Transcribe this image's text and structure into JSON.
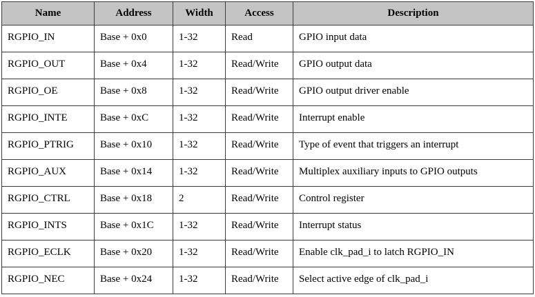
{
  "table": {
    "headers": [
      "Name",
      "Address",
      "Width",
      "Access",
      "Description"
    ],
    "rows": [
      [
        "RGPIO_IN",
        "Base + 0x0",
        "1-32",
        "Read",
        "GPIO input data"
      ],
      [
        "RGPIO_OUT",
        "Base + 0x4",
        "1-32",
        "Read/Write",
        "GPIO output data"
      ],
      [
        "RGPIO_OE",
        "Base + 0x8",
        "1-32",
        "Read/Write",
        "GPIO output driver enable"
      ],
      [
        "RGPIO_INTE",
        "Base + 0xC",
        "1-32",
        "Read/Write",
        "Interrupt enable"
      ],
      [
        "RGPIO_PTRIG",
        "Base + 0x10",
        "1-32",
        "Read/Write",
        "Type of event that triggers an interrupt"
      ],
      [
        "RGPIO_AUX",
        "Base + 0x14",
        "1-32",
        "Read/Write",
        "Multiplex auxiliary inputs to GPIO outputs"
      ],
      [
        "RGPIO_CTRL",
        "Base + 0x18",
        "2",
        "Read/Write",
        "Control register"
      ],
      [
        "RGPIO_INTS",
        "Base + 0x1C",
        "1-32",
        "Read/Write",
        "Interrupt status"
      ],
      [
        "RGPIO_ECLK",
        "Base + 0x20",
        "1-32",
        "Read/Write",
        "Enable clk_pad_i to latch RGPIO_IN"
      ],
      [
        "RGPIO_NEC",
        "Base + 0x24",
        "1-32",
        "Read/Write",
        "Select active edge of clk_pad_i"
      ]
    ]
  },
  "colors": {
    "header_background": "#c4c4c4",
    "border": "#3a3a3a",
    "text": "#000000"
  }
}
